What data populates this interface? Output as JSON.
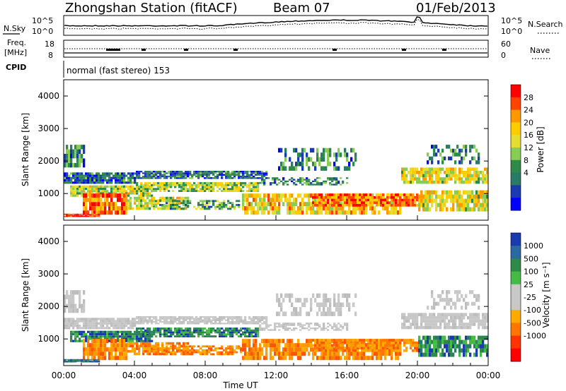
{
  "header": {
    "station": "Zhongshan Station (fitACF)",
    "beam": "Beam 07",
    "date": "01/Feb/2013"
  },
  "sky_panel": {
    "left_label": "N.Sky",
    "left_ticks": [
      "10^5",
      "10^0"
    ],
    "right_ticks": [
      "10^5",
      "10^0"
    ],
    "right_label": "N.Search"
  },
  "freq_panel": {
    "left_label_1": "Freq.",
    "left_label_2": "[MHz]",
    "left_ticks": [
      "18",
      "8"
    ],
    "right_ticks": [
      "60",
      "0"
    ],
    "right_label": "Nave"
  },
  "cpid": {
    "label": "CPID",
    "value": "normal (fast stereo) 153"
  },
  "chart_data": [
    {
      "type": "heatmap",
      "name": "Power",
      "ylabel": "Slant Range [km]",
      "y_ticks": [
        "4000",
        "3000",
        "2000",
        "1000"
      ],
      "ylim": [
        180,
        4500
      ],
      "colorbar_label": "Power [dB]",
      "colorbar_ticks": [
        "28",
        "24",
        "20",
        "16",
        "12",
        "8",
        "4"
      ],
      "colorbar_colors": [
        "#ff0000",
        "#ff4400",
        "#ff9900",
        "#ffcc00",
        "#e6dd33",
        "#88cc55",
        "#2f8a4a",
        "#2a7a66",
        "#1a3ab0",
        "#0000ff"
      ]
    },
    {
      "type": "heatmap",
      "name": "Velocity",
      "ylabel": "Slant Range [km]",
      "y_ticks": [
        "4000",
        "3000",
        "2000",
        "1000"
      ],
      "ylim": [
        180,
        4500
      ],
      "colorbar_label": "Velocity [m s⁻¹]",
      "colorbar_ticks": [
        "1000",
        "500",
        "100",
        "25",
        "-25",
        "-100",
        "-500",
        "-1000"
      ],
      "colorbar_colors": [
        "#1a3ab0",
        "#2a6aa0",
        "#2f8a4a",
        "#44bb44",
        "#c8c8c8",
        "#c8c8c8",
        "#ffaa00",
        "#ff7700",
        "#ff3300",
        "#ff0000"
      ]
    }
  ],
  "x_axis": {
    "ticks": [
      "00:00",
      "04:00",
      "08:00",
      "12:00",
      "16:00",
      "20:00",
      "00:00"
    ],
    "label": "Time UT"
  }
}
